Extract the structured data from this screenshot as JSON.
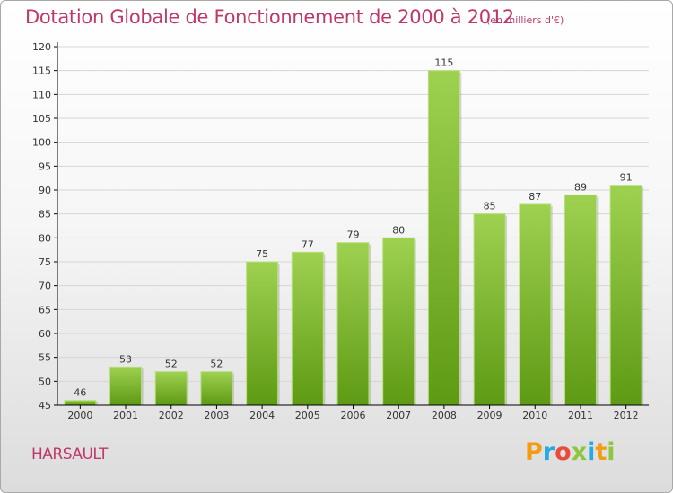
{
  "header": {
    "title": "Dotation Globale de Fonctionnement de 2000 à 2012",
    "subtitle": "(en milliers d'€)"
  },
  "footer": {
    "commune": "HARSAULT",
    "logo": {
      "text": "Proxiti",
      "letter_colors": [
        "#f39c12",
        "#27a9e1",
        "#e74c3c",
        "#8dc63f",
        "#27a9e1",
        "#f39c12",
        "#8dc63f"
      ]
    }
  },
  "colors": {
    "title": "#c0386a",
    "bar_top": "#9ed150",
    "bar_bottom": "#5e9a14",
    "grid": "#d6d6d6",
    "axis": "#000000"
  },
  "chart_data": {
    "type": "bar",
    "categories": [
      "2000",
      "2001",
      "2002",
      "2003",
      "2004",
      "2005",
      "2006",
      "2007",
      "2008",
      "2009",
      "2010",
      "2011",
      "2012"
    ],
    "values": [
      46,
      53,
      52,
      52,
      75,
      77,
      79,
      80,
      115,
      85,
      87,
      89,
      91
    ],
    "title": "Dotation Globale de Fonctionnement de 2000 à 2012",
    "subtitle": "(en milliers d'€)",
    "ylim": [
      45,
      120
    ],
    "yticks": [
      45,
      50,
      55,
      60,
      65,
      70,
      75,
      80,
      85,
      90,
      95,
      100,
      105,
      110,
      115,
      120
    ],
    "grid": true,
    "data_labels": true
  }
}
